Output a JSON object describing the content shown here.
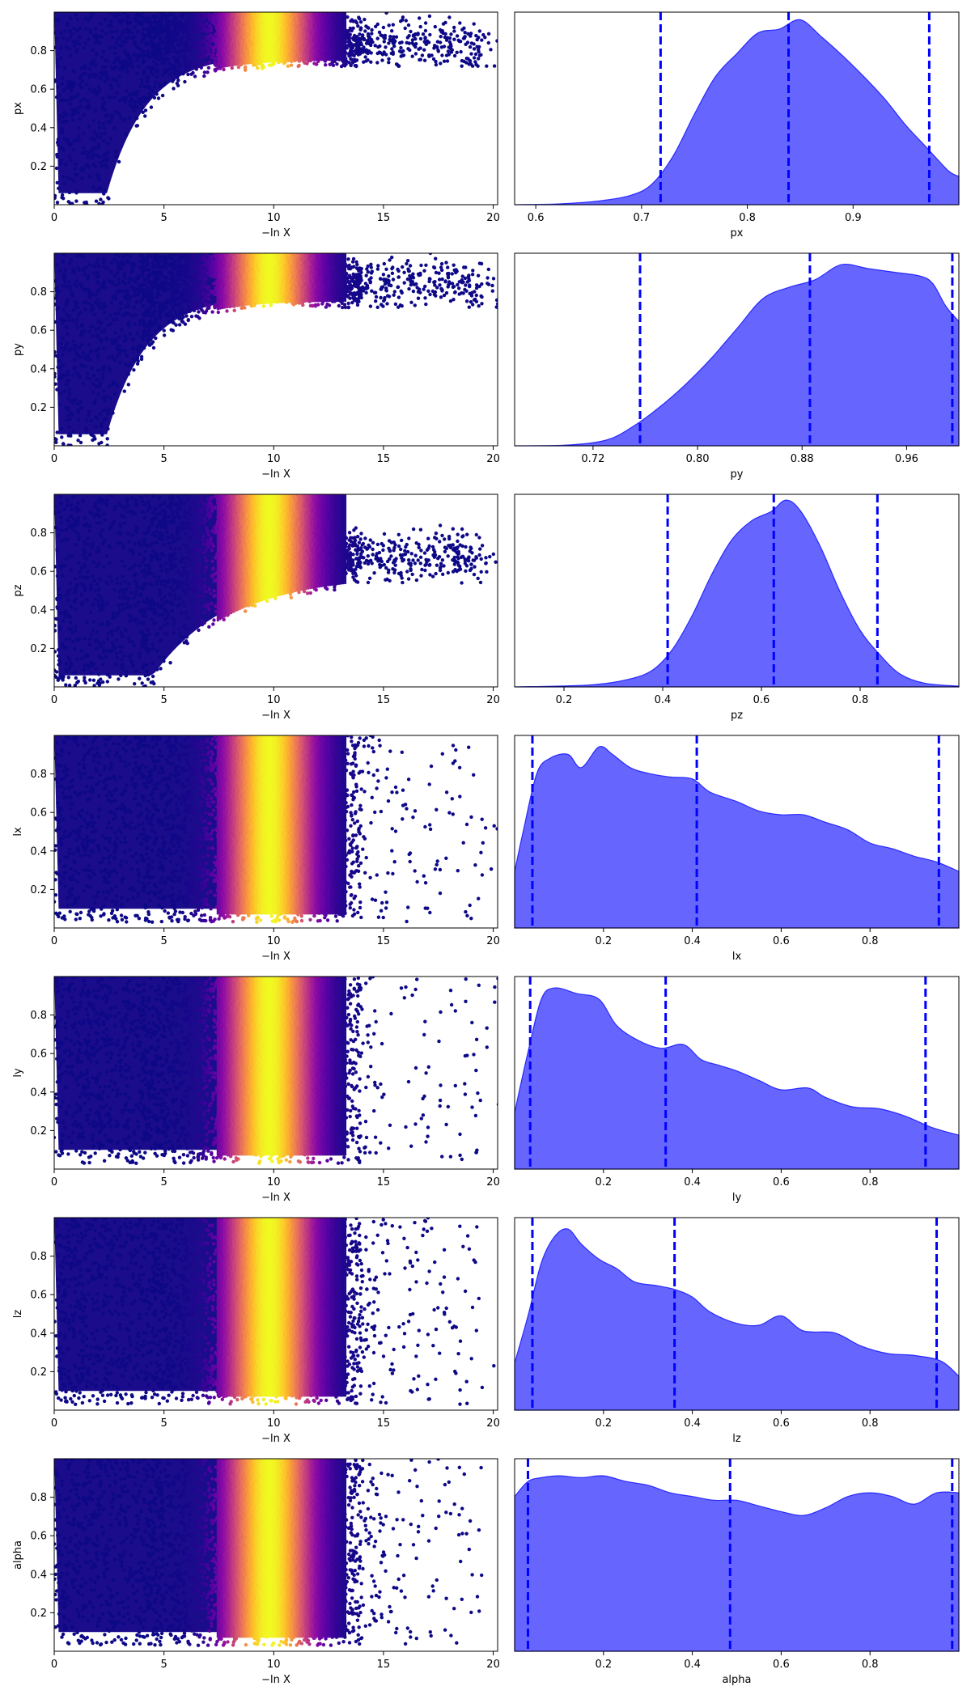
{
  "chart_data": {
    "type": "scatter",
    "trace_xlabel": "−ln X",
    "trace_xlim": [
      0,
      20.2
    ],
    "trace_xticks": [
      0,
      5,
      10,
      15,
      20
    ],
    "trace_ylim": [
      0,
      1
    ],
    "trace_yticks": [
      0.2,
      0.4,
      0.6,
      0.8
    ],
    "colormap": "plasma",
    "hist_color": "#0000ff",
    "hist_fill_alpha": 0.6,
    "rows": [
      {
        "param": "px",
        "trace_ylabel": "px",
        "trace_shape": "rise",
        "hist_xlabel": "px",
        "hist_xlim": [
          0.58,
          1.0
        ],
        "hist_xticks": [
          "0.6",
          "0.7",
          "0.8",
          "0.9"
        ],
        "quantiles": [
          0.718,
          0.839,
          0.972
        ],
        "density": [
          [
            0.58,
            0.0
          ],
          [
            0.62,
            0.004
          ],
          [
            0.66,
            0.02
          ],
          [
            0.69,
            0.05
          ],
          [
            0.71,
            0.11
          ],
          [
            0.73,
            0.26
          ],
          [
            0.75,
            0.48
          ],
          [
            0.77,
            0.68
          ],
          [
            0.79,
            0.8
          ],
          [
            0.81,
            0.91
          ],
          [
            0.83,
            0.93
          ],
          [
            0.85,
            0.98
          ],
          [
            0.87,
            0.89
          ],
          [
            0.89,
            0.79
          ],
          [
            0.91,
            0.68
          ],
          [
            0.93,
            0.56
          ],
          [
            0.95,
            0.42
          ],
          [
            0.97,
            0.3
          ],
          [
            0.99,
            0.18
          ],
          [
            1.0,
            0.15
          ]
        ]
      },
      {
        "param": "py",
        "trace_ylabel": "py",
        "trace_shape": "rise",
        "hist_xlabel": "py",
        "hist_xlim": [
          0.66,
          1.0
        ],
        "hist_xticks": [
          "0.72",
          "0.80",
          "0.88",
          "0.96"
        ],
        "quantiles": [
          0.756,
          0.886,
          0.995
        ],
        "density": [
          [
            0.66,
            0.0
          ],
          [
            0.7,
            0.004
          ],
          [
            0.73,
            0.03
          ],
          [
            0.75,
            0.1
          ],
          [
            0.77,
            0.2
          ],
          [
            0.79,
            0.32
          ],
          [
            0.81,
            0.46
          ],
          [
            0.83,
            0.62
          ],
          [
            0.85,
            0.78
          ],
          [
            0.87,
            0.84
          ],
          [
            0.89,
            0.88
          ],
          [
            0.91,
            0.96
          ],
          [
            0.93,
            0.94
          ],
          [
            0.95,
            0.92
          ],
          [
            0.97,
            0.9
          ],
          [
            0.98,
            0.86
          ],
          [
            0.99,
            0.74
          ],
          [
            1.0,
            0.66
          ]
        ]
      },
      {
        "param": "pz",
        "trace_ylabel": "pz",
        "trace_shape": "mid",
        "hist_xlabel": "pz",
        "hist_xlim": [
          0.1,
          1.0
        ],
        "hist_xticks": [
          "0.2",
          "0.4",
          "0.6",
          "0.8"
        ],
        "quantiles": [
          0.41,
          0.625,
          0.835
        ],
        "density": [
          [
            0.1,
            0.0
          ],
          [
            0.25,
            0.01
          ],
          [
            0.33,
            0.04
          ],
          [
            0.38,
            0.09
          ],
          [
            0.42,
            0.2
          ],
          [
            0.46,
            0.38
          ],
          [
            0.5,
            0.6
          ],
          [
            0.54,
            0.78
          ],
          [
            0.58,
            0.88
          ],
          [
            0.62,
            0.93
          ],
          [
            0.65,
            0.99
          ],
          [
            0.68,
            0.93
          ],
          [
            0.72,
            0.74
          ],
          [
            0.76,
            0.5
          ],
          [
            0.8,
            0.3
          ],
          [
            0.84,
            0.17
          ],
          [
            0.88,
            0.07
          ],
          [
            0.93,
            0.02
          ],
          [
            1.0,
            0.004
          ]
        ]
      },
      {
        "param": "lx",
        "trace_ylabel": "lx",
        "trace_shape": "flat",
        "hist_xlabel": "lx",
        "hist_xlim": [
          0.0,
          1.0
        ],
        "hist_xticks": [
          "0.2",
          "0.4",
          "0.6",
          "0.8"
        ],
        "quantiles": [
          0.04,
          0.41,
          0.955
        ],
        "density": [
          [
            0.0,
            0.3
          ],
          [
            0.02,
            0.52
          ],
          [
            0.05,
            0.82
          ],
          [
            0.08,
            0.9
          ],
          [
            0.12,
            0.92
          ],
          [
            0.15,
            0.85
          ],
          [
            0.19,
            0.96
          ],
          [
            0.22,
            0.92
          ],
          [
            0.26,
            0.85
          ],
          [
            0.3,
            0.82
          ],
          [
            0.35,
            0.8
          ],
          [
            0.4,
            0.79
          ],
          [
            0.44,
            0.72
          ],
          [
            0.5,
            0.67
          ],
          [
            0.55,
            0.62
          ],
          [
            0.6,
            0.6
          ],
          [
            0.65,
            0.6
          ],
          [
            0.7,
            0.56
          ],
          [
            0.75,
            0.52
          ],
          [
            0.8,
            0.45
          ],
          [
            0.85,
            0.42
          ],
          [
            0.9,
            0.38
          ],
          [
            0.95,
            0.35
          ],
          [
            1.0,
            0.3
          ]
        ]
      },
      {
        "param": "ly",
        "trace_ylabel": "ly",
        "trace_shape": "flat",
        "hist_xlabel": "ly",
        "hist_xlim": [
          0.0,
          1.0
        ],
        "hist_xticks": [
          "0.2",
          "0.4",
          "0.6",
          "0.8"
        ],
        "quantiles": [
          0.035,
          0.34,
          0.925
        ],
        "density": [
          [
            0.0,
            0.3
          ],
          [
            0.03,
            0.62
          ],
          [
            0.06,
            0.9
          ],
          [
            0.09,
            0.96
          ],
          [
            0.14,
            0.93
          ],
          [
            0.19,
            0.9
          ],
          [
            0.23,
            0.76
          ],
          [
            0.28,
            0.68
          ],
          [
            0.33,
            0.64
          ],
          [
            0.38,
            0.66
          ],
          [
            0.42,
            0.58
          ],
          [
            0.46,
            0.55
          ],
          [
            0.5,
            0.52
          ],
          [
            0.55,
            0.47
          ],
          [
            0.6,
            0.42
          ],
          [
            0.66,
            0.43
          ],
          [
            0.7,
            0.38
          ],
          [
            0.76,
            0.33
          ],
          [
            0.82,
            0.32
          ],
          [
            0.88,
            0.28
          ],
          [
            0.94,
            0.22
          ],
          [
            1.0,
            0.18
          ]
        ]
      },
      {
        "param": "lz",
        "trace_ylabel": "lz",
        "trace_shape": "flat",
        "hist_xlabel": "lz",
        "hist_xlim": [
          0.0,
          1.0
        ],
        "hist_xticks": [
          "0.2",
          "0.4",
          "0.6",
          "0.8"
        ],
        "quantiles": [
          0.04,
          0.36,
          0.95
        ],
        "density": [
          [
            0.0,
            0.25
          ],
          [
            0.03,
            0.5
          ],
          [
            0.06,
            0.78
          ],
          [
            0.09,
            0.92
          ],
          [
            0.12,
            0.96
          ],
          [
            0.15,
            0.88
          ],
          [
            0.19,
            0.8
          ],
          [
            0.23,
            0.75
          ],
          [
            0.27,
            0.68
          ],
          [
            0.32,
            0.66
          ],
          [
            0.36,
            0.64
          ],
          [
            0.4,
            0.6
          ],
          [
            0.44,
            0.52
          ],
          [
            0.5,
            0.46
          ],
          [
            0.55,
            0.45
          ],
          [
            0.6,
            0.5
          ],
          [
            0.65,
            0.42
          ],
          [
            0.72,
            0.41
          ],
          [
            0.78,
            0.34
          ],
          [
            0.84,
            0.3
          ],
          [
            0.9,
            0.29
          ],
          [
            0.96,
            0.26
          ],
          [
            1.0,
            0.18
          ]
        ]
      },
      {
        "param": "alpha",
        "trace_ylabel": "alpha",
        "trace_shape": "flat",
        "hist_xlabel": "alpha",
        "hist_xlim": [
          0.0,
          1.0
        ],
        "hist_xticks": [
          "0.2",
          "0.4",
          "0.6",
          "0.8"
        ],
        "quantiles": [
          0.03,
          0.485,
          0.985
        ],
        "density": [
          [
            0.0,
            0.82
          ],
          [
            0.03,
            0.9
          ],
          [
            0.06,
            0.92
          ],
          [
            0.1,
            0.93
          ],
          [
            0.15,
            0.92
          ],
          [
            0.2,
            0.93
          ],
          [
            0.25,
            0.9
          ],
          [
            0.3,
            0.88
          ],
          [
            0.35,
            0.84
          ],
          [
            0.4,
            0.82
          ],
          [
            0.45,
            0.8
          ],
          [
            0.5,
            0.8
          ],
          [
            0.55,
            0.77
          ],
          [
            0.6,
            0.74
          ],
          [
            0.65,
            0.72
          ],
          [
            0.7,
            0.76
          ],
          [
            0.75,
            0.82
          ],
          [
            0.8,
            0.84
          ],
          [
            0.85,
            0.82
          ],
          [
            0.9,
            0.78
          ],
          [
            0.95,
            0.84
          ],
          [
            1.0,
            0.84
          ]
        ]
      }
    ]
  }
}
